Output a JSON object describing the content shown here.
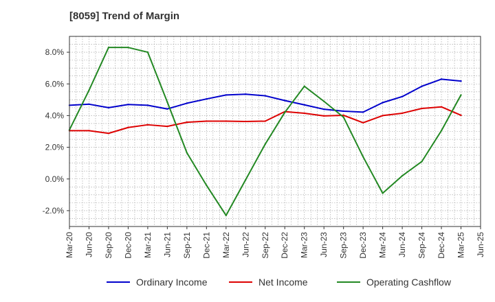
{
  "chart_data": {
    "type": "line",
    "title": "[8059]  Trend of Margin",
    "xlabel": "",
    "ylabel": "",
    "x_tick_labels": [
      "Mar-20",
      "Jun-20",
      "Sep-20",
      "Dec-20",
      "Mar-21",
      "Jun-21",
      "Sep-21",
      "Dec-21",
      "Mar-22",
      "Jun-22",
      "Sep-22",
      "Dec-22",
      "Mar-23",
      "Jun-23",
      "Sep-23",
      "Dec-23",
      "Mar-24",
      "Jun-24",
      "Sep-24",
      "Dec-24",
      "Mar-25",
      "Jun-25"
    ],
    "y_ticks": [
      -2.0,
      0.0,
      2.0,
      4.0,
      6.0,
      8.0
    ],
    "y_tick_labels": [
      "-2.0%",
      "0.0%",
      "2.0%",
      "4.0%",
      "6.0%",
      "8.0%"
    ],
    "ylim": [
      -3.0,
      9.0
    ],
    "grid": true,
    "legend_position": "bottom",
    "series": [
      {
        "name": "Ordinary Income",
        "color": "#0000cc",
        "values": [
          4.65,
          4.72,
          4.5,
          4.7,
          4.65,
          4.42,
          4.78,
          5.05,
          5.3,
          5.35,
          5.25,
          4.95,
          4.68,
          4.4,
          4.28,
          4.22,
          4.82,
          5.2,
          5.85,
          6.3,
          6.18
        ]
      },
      {
        "name": "Net Income",
        "color": "#dd0000",
        "values": [
          3.05,
          3.05,
          2.88,
          3.25,
          3.42,
          3.32,
          3.58,
          3.65,
          3.65,
          3.63,
          3.65,
          4.25,
          4.15,
          3.98,
          4.02,
          3.55,
          4.0,
          4.15,
          4.45,
          4.55,
          4.02
        ]
      },
      {
        "name": "Operating Cashflow",
        "color": "#228822",
        "values": [
          3.1,
          5.6,
          8.3,
          8.3,
          8.0,
          4.85,
          1.65,
          -0.4,
          -2.3,
          -0.05,
          2.2,
          4.2,
          5.85,
          4.9,
          3.9,
          1.4,
          -0.9,
          0.2,
          1.1,
          3.05,
          5.3
        ]
      }
    ]
  }
}
